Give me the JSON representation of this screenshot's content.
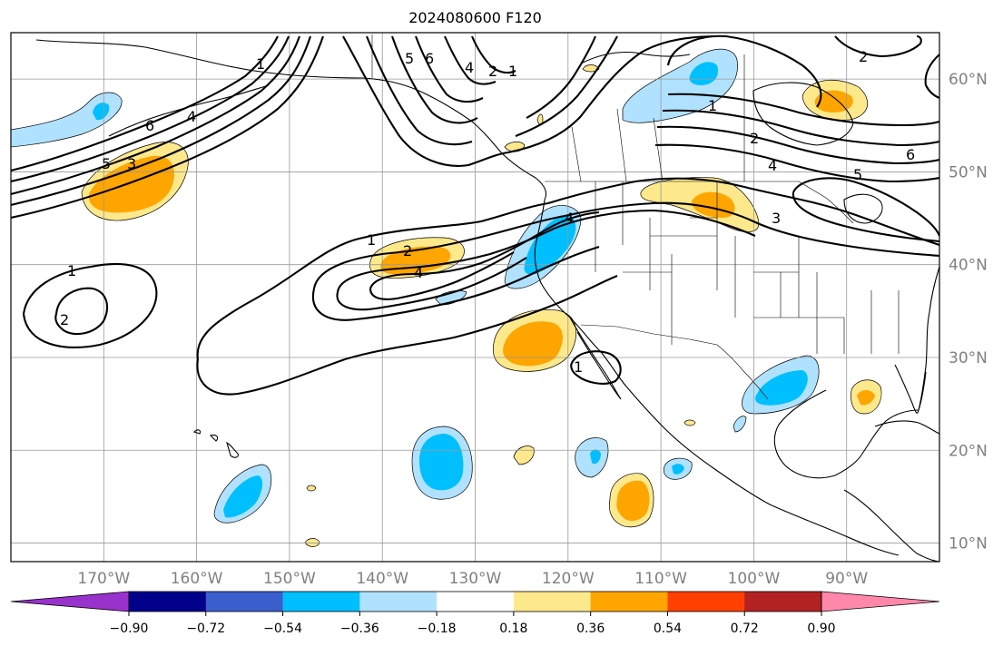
{
  "title": "2024080600 F120",
  "map": {
    "lon_labels": [
      {
        "lon": -170,
        "label": "170°W"
      },
      {
        "lon": -160,
        "label": "160°W"
      },
      {
        "lon": -150,
        "label": "150°W"
      },
      {
        "lon": -140,
        "label": "140°W"
      },
      {
        "lon": -130,
        "label": "130°W"
      },
      {
        "lon": -120,
        "label": "120°W"
      },
      {
        "lon": -110,
        "label": "110°W"
      },
      {
        "lon": -100,
        "label": "100°W"
      },
      {
        "lon": -90,
        "label": "90°W"
      }
    ],
    "lat_labels": [
      {
        "lat": 60,
        "label": "60°N"
      },
      {
        "lat": 50,
        "label": "50°N"
      },
      {
        "lat": 40,
        "label": "40°N"
      },
      {
        "lat": 30,
        "label": "30°N"
      },
      {
        "lat": 20,
        "label": "20°N"
      },
      {
        "lat": 10,
        "label": "10°N"
      }
    ],
    "contour_labels": [
      "1",
      "2",
      "3",
      "4",
      "5",
      "6"
    ]
  },
  "colorbar": {
    "colors": [
      "#9932cc",
      "#00008b",
      "#3a5fcd",
      "#00bfff",
      "#b0e2ff",
      "#ffffff",
      "#fde98c",
      "#ffa500",
      "#ff4000",
      "#b22222",
      "#ff88aa"
    ],
    "ticks": [
      {
        "value": -0.9,
        "label": "−0.90"
      },
      {
        "value": -0.72,
        "label": "−0.72"
      },
      {
        "value": -0.54,
        "label": "−0.54"
      },
      {
        "value": -0.36,
        "label": "−0.36"
      },
      {
        "value": -0.18,
        "label": "−0.18"
      },
      {
        "value": 0.18,
        "label": "0.18"
      },
      {
        "value": 0.36,
        "label": "0.36"
      },
      {
        "value": 0.54,
        "label": "0.54"
      },
      {
        "value": 0.72,
        "label": "0.72"
      },
      {
        "value": 0.9,
        "label": "0.90"
      }
    ]
  }
}
